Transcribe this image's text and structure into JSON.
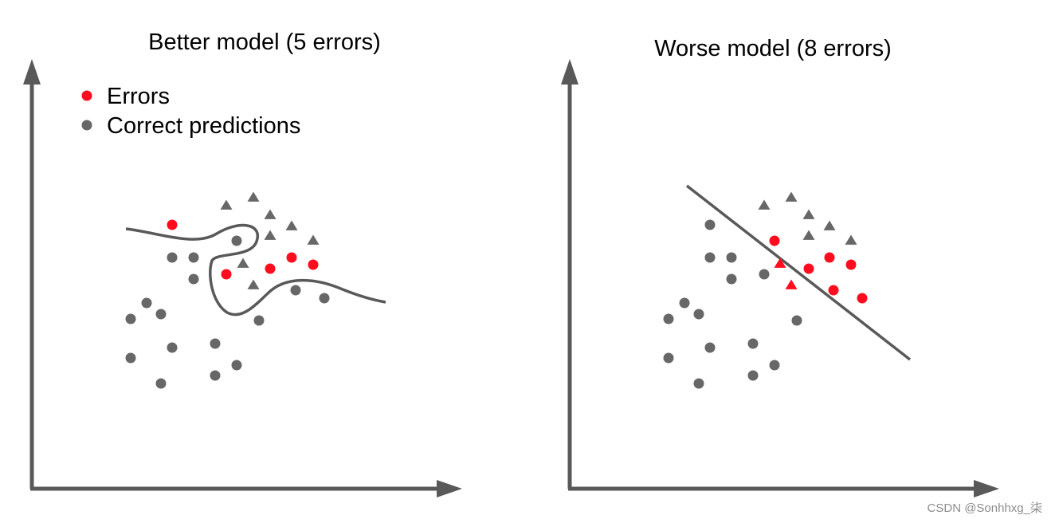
{
  "colors": {
    "error": "#ff0d1e",
    "correct": "#676767",
    "axis": "#595959",
    "boundary": "#595959"
  },
  "panels": [
    {
      "title": "Better model (5 errors)",
      "boundary_shape": "wiggly curve",
      "points": [
        {
          "shape": "circle",
          "status": "error"
        },
        {
          "shape": "circle",
          "status": "error"
        },
        {
          "shape": "circle",
          "status": "error"
        },
        {
          "shape": "circle",
          "status": "error"
        },
        {
          "shape": "circle",
          "status": "error"
        },
        {
          "shape": "circle",
          "status": "correct"
        },
        {
          "shape": "circle",
          "status": "correct"
        },
        {
          "shape": "circle",
          "status": "correct"
        },
        {
          "shape": "circle",
          "status": "correct"
        },
        {
          "shape": "circle",
          "status": "correct"
        },
        {
          "shape": "circle",
          "status": "correct"
        },
        {
          "shape": "circle",
          "status": "correct"
        },
        {
          "shape": "circle",
          "status": "correct"
        },
        {
          "shape": "circle",
          "status": "correct"
        },
        {
          "shape": "circle",
          "status": "correct"
        },
        {
          "shape": "circle",
          "status": "correct"
        },
        {
          "shape": "circle",
          "status": "correct"
        },
        {
          "shape": "circle",
          "status": "correct"
        },
        {
          "shape": "circle",
          "status": "correct"
        },
        {
          "shape": "circle",
          "status": "correct"
        },
        {
          "shape": "circle",
          "status": "correct"
        },
        {
          "shape": "triangle",
          "status": "correct"
        },
        {
          "shape": "triangle",
          "status": "correct"
        },
        {
          "shape": "triangle",
          "status": "correct"
        },
        {
          "shape": "triangle",
          "status": "correct"
        },
        {
          "shape": "triangle",
          "status": "correct"
        },
        {
          "shape": "triangle",
          "status": "correct"
        },
        {
          "shape": "triangle",
          "status": "correct"
        },
        {
          "shape": "triangle",
          "status": "correct"
        }
      ]
    },
    {
      "title": "Worse model (8 errors)",
      "boundary_shape": "straight line",
      "points": [
        {
          "shape": "circle",
          "status": "error"
        },
        {
          "shape": "circle",
          "status": "error"
        },
        {
          "shape": "circle",
          "status": "error"
        },
        {
          "shape": "circle",
          "status": "error"
        },
        {
          "shape": "circle",
          "status": "error"
        },
        {
          "shape": "circle",
          "status": "error"
        },
        {
          "shape": "triangle",
          "status": "error"
        },
        {
          "shape": "triangle",
          "status": "error"
        },
        {
          "shape": "circle",
          "status": "correct"
        },
        {
          "shape": "circle",
          "status": "correct"
        },
        {
          "shape": "circle",
          "status": "correct"
        },
        {
          "shape": "circle",
          "status": "correct"
        },
        {
          "shape": "circle",
          "status": "correct"
        },
        {
          "shape": "circle",
          "status": "correct"
        },
        {
          "shape": "circle",
          "status": "correct"
        },
        {
          "shape": "circle",
          "status": "correct"
        },
        {
          "shape": "circle",
          "status": "correct"
        },
        {
          "shape": "circle",
          "status": "correct"
        },
        {
          "shape": "circle",
          "status": "correct"
        },
        {
          "shape": "circle",
          "status": "correct"
        },
        {
          "shape": "circle",
          "status": "correct"
        },
        {
          "shape": "circle",
          "status": "correct"
        },
        {
          "shape": "circle",
          "status": "correct"
        },
        {
          "shape": "triangle",
          "status": "correct"
        },
        {
          "shape": "triangle",
          "status": "correct"
        },
        {
          "shape": "triangle",
          "status": "correct"
        },
        {
          "shape": "triangle",
          "status": "correct"
        },
        {
          "shape": "triangle",
          "status": "correct"
        },
        {
          "shape": "triangle",
          "status": "correct"
        }
      ]
    }
  ],
  "legend": {
    "errors_label": "Errors",
    "correct_label": "Correct predictions"
  },
  "watermark": "CSDN @Sonhhxg_柒"
}
